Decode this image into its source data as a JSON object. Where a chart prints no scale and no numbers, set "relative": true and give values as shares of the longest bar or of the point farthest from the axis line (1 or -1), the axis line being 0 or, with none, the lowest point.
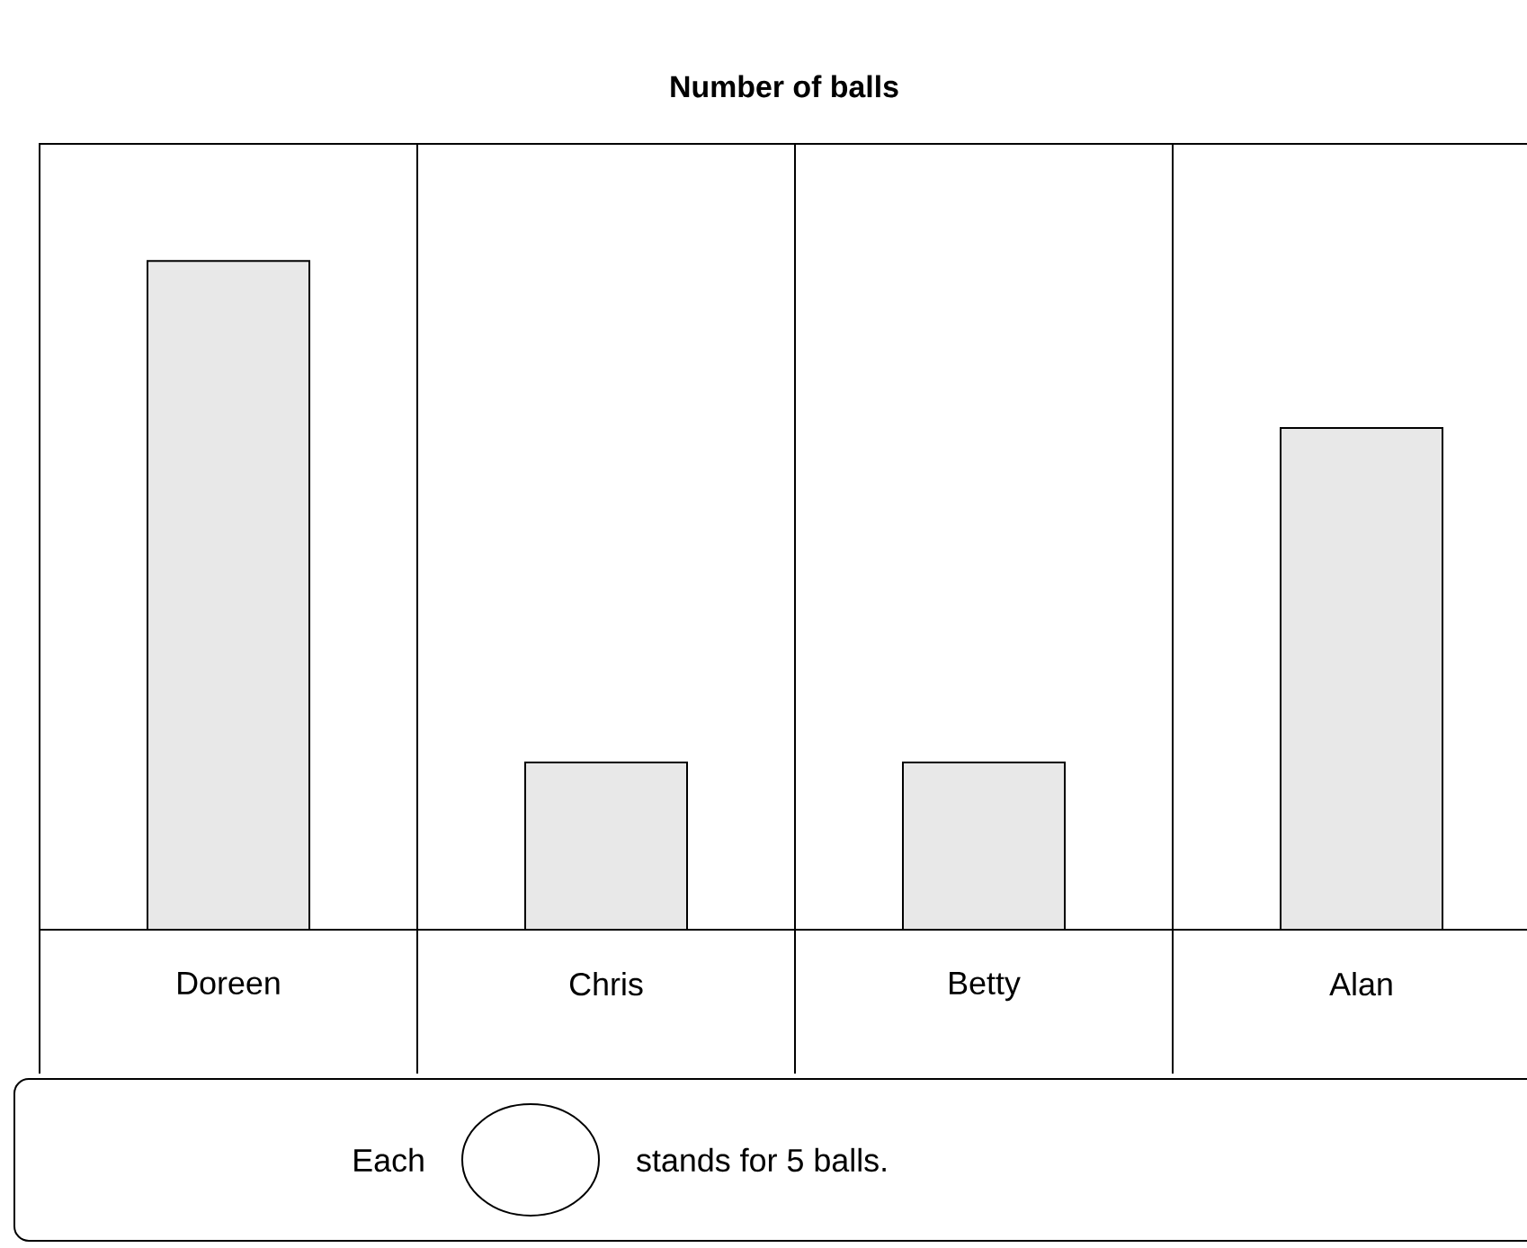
{
  "chart_data": {
    "type": "bar",
    "title": "Number of balls",
    "categories": [
      "Doreen",
      "Chris",
      "Betty",
      "Alan"
    ],
    "values": [
      1,
      0.25,
      0.25,
      0.75
    ],
    "relative": true,
    "color": "#e8e8e8",
    "annotations": [
      "Each",
      "stands for 5 balls."
    ]
  }
}
